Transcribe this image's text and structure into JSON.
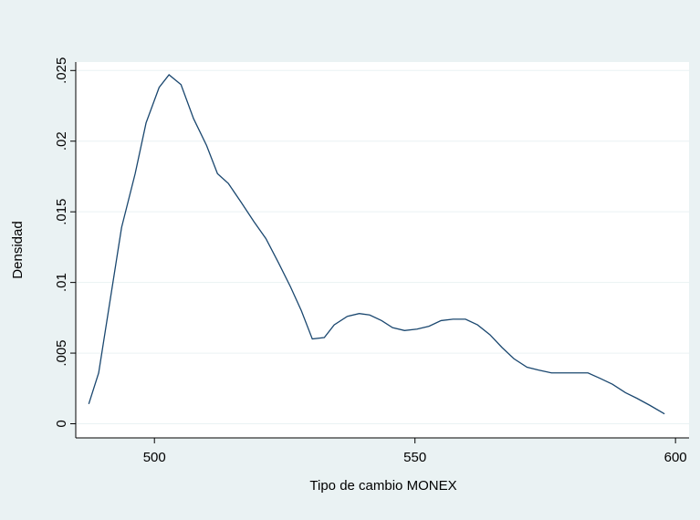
{
  "chart_data": {
    "type": "line",
    "x_label": "Tipo de cambio MONEX",
    "y_label": "Densidad",
    "x": [
      487.4,
      489.3,
      493.7,
      496.3,
      498.4,
      500.9,
      502.8,
      505.1,
      507.5,
      510.0,
      512.1,
      514.2,
      516.6,
      519.1,
      521.4,
      523.8,
      526.1,
      528.2,
      530.3,
      532.6,
      534.5,
      537.0,
      539.3,
      541.3,
      543.6,
      545.7,
      548.0,
      550.4,
      552.7,
      555.0,
      557.3,
      559.7,
      562.0,
      564.4,
      566.7,
      569.0,
      571.5,
      573.7,
      576.2,
      578.5,
      580.9,
      583.2,
      585.6,
      587.9,
      590.4,
      592.6,
      595.1,
      597.9
    ],
    "values": [
      0.0014,
      0.0036,
      0.0139,
      0.0177,
      0.0213,
      0.0238,
      0.0247,
      0.024,
      0.0216,
      0.0197,
      0.0177,
      0.017,
      0.0157,
      0.0143,
      0.0131,
      0.0114,
      0.0097,
      0.008,
      0.006,
      0.0061,
      0.007,
      0.0076,
      0.0078,
      0.0077,
      0.0073,
      0.0068,
      0.0066,
      0.0067,
      0.0069,
      0.0073,
      0.0074,
      0.0074,
      0.007,
      0.0063,
      0.0054,
      0.0046,
      0.004,
      0.0038,
      0.0036,
      0.0036,
      0.0036,
      0.0036,
      0.0032,
      0.0028,
      0.0022,
      0.0018,
      0.0013,
      0.0007
    ],
    "color": "#1a476f",
    "xlim": [
      484.9,
      602.6
    ],
    "ylim": [
      -0.001,
      0.0256
    ],
    "xticks": [
      500,
      550,
      600
    ],
    "yticks": [
      0,
      {
        "value": 0.005,
        "label": ".005"
      },
      {
        "value": 0.01,
        "label": ".01"
      },
      {
        "value": 0.015,
        "label": ".015"
      },
      {
        "value": 0.02,
        "label": ".02"
      },
      {
        "value": 0.025,
        "label": ".025"
      }
    ],
    "grid": true
  }
}
